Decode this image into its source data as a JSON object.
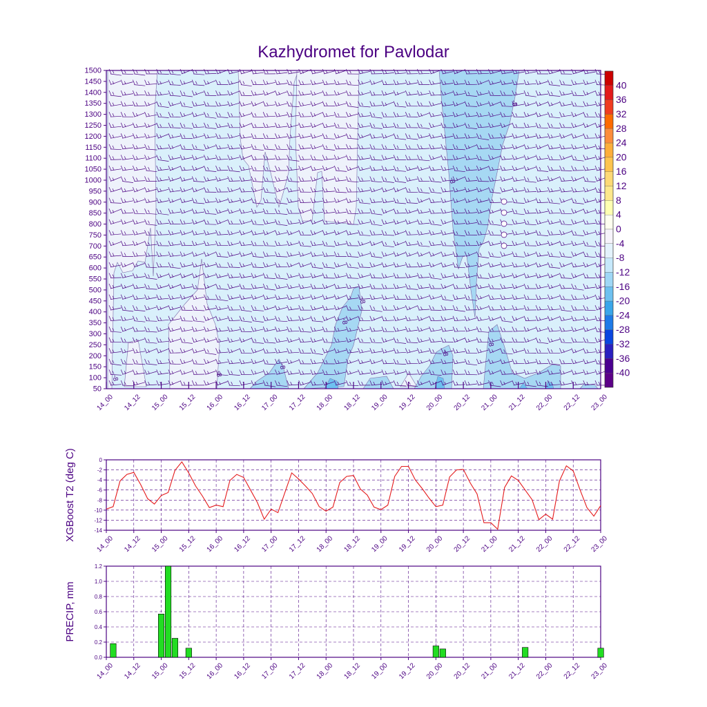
{
  "title": "Kazhydromet for Pavlodar",
  "colors": {
    "frame": "#4b0082",
    "t2_line": "#e41a1c",
    "precip_bar": "#22dd22",
    "barb": "#4b0082"
  },
  "chart_data": [
    {
      "type": "heatmap",
      "name": "cross-section",
      "x_ticks": [
        "14_00",
        "14_12",
        "15_00",
        "15_12",
        "16_00",
        "16_12",
        "17_00",
        "17_12",
        "18_00",
        "18_12",
        "19_00",
        "19_12",
        "20_00",
        "20_12",
        "21_00",
        "21_12",
        "22_00",
        "22_12",
        "23_00"
      ],
      "y_ticks": [
        "1500",
        "1450",
        "1400",
        "1350",
        "1300",
        "1250",
        "1200",
        "1150",
        "1100",
        "1050",
        "1000",
        "950",
        "900",
        "850",
        "800",
        "750",
        "700",
        "650",
        "600",
        "550",
        "500",
        "450",
        "400",
        "350",
        "300",
        "250",
        "200",
        "150",
        "100",
        "50"
      ],
      "ylim": [
        50,
        1500
      ],
      "contour_label": "-8",
      "colorbar": {
        "labels": [
          "40",
          "36",
          "32",
          "28",
          "24",
          "20",
          "16",
          "12",
          "8",
          "4",
          "0",
          "-4",
          "-8",
          "-12",
          "-16",
          "-20",
          "-24",
          "-28",
          "-32",
          "-36",
          "-40"
        ],
        "colors": [
          "#cc0000",
          "#e31a1c",
          "#f03b20",
          "#fd6a02",
          "#fd8d3c",
          "#fdae3c",
          "#fec44f",
          "#fed976",
          "#fee88b",
          "#ffffb2",
          "#fffff0",
          "#f7f4fb",
          "#e4f3fc",
          "#c6e9fb",
          "#9fd7f6",
          "#6ec1f0",
          "#3aa6ea",
          "#1e7be8",
          "#0a46e0",
          "#2a20c0",
          "#4b0090",
          "#5c0088"
        ]
      },
      "barb_rows": 30,
      "barb_cols": 42
    },
    {
      "type": "line",
      "name": "temperature",
      "ylabel": "XGBoost T2 (deg C)",
      "ylim": [
        -14,
        0
      ],
      "y_ticks": [
        "0",
        "-2",
        "-4",
        "-6",
        "-8",
        "-10",
        "-12",
        "-14"
      ],
      "x_ticks": [
        "14_00",
        "14_12",
        "15_00",
        "15_12",
        "16_00",
        "16_12",
        "17_00",
        "17_12",
        "18_00",
        "18_12",
        "19_00",
        "19_12",
        "20_00",
        "20_12",
        "21_00",
        "21_12",
        "22_00",
        "22_12",
        "23_00"
      ],
      "x_step_hours": 3,
      "values": [
        -9.8,
        -9.3,
        -4.2,
        -2.9,
        -2.5,
        -4.9,
        -7.7,
        -8.8,
        -7.1,
        -6.5,
        -2.1,
        -0.4,
        -2.6,
        -5.2,
        -7.2,
        -9.5,
        -9.0,
        -9.3,
        -4.1,
        -2.9,
        -3.5,
        -6.0,
        -8.5,
        -11.8,
        -9.8,
        -10.5,
        -6.5,
        -2.6,
        -3.8,
        -5.2,
        -6.7,
        -9.3,
        -10.2,
        -9.4,
        -4.5,
        -3.3,
        -3.1,
        -5.8,
        -7.0,
        -9.4,
        -9.9,
        -9.0,
        -3.3,
        -1.3,
        -1.3,
        -4.0,
        -5.7,
        -7.6,
        -9.3,
        -9.0,
        -3.4,
        -2.0,
        -1.9,
        -4.6,
        -6.8,
        -12.5,
        -12.5,
        -13.8,
        -5.5,
        -3.2,
        -4.1,
        -6.0,
        -7.9,
        -11.9,
        -10.8,
        -11.8,
        -4.2,
        -1.2,
        -2.2,
        -6.0,
        -9.5,
        -11.2,
        -9.1
      ]
    },
    {
      "type": "bar",
      "name": "precipitation",
      "ylabel": "PRECIP, mm",
      "ylim": [
        0,
        1.2
      ],
      "y_ticks": [
        "1.2",
        "1.0",
        "0.8",
        "0.6",
        "0.4",
        "0.2",
        "0.0"
      ],
      "x_ticks": [
        "14_00",
        "14_12",
        "15_00",
        "15_12",
        "16_00",
        "16_12",
        "17_00",
        "17_12",
        "18_00",
        "18_12",
        "19_00",
        "19_12",
        "20_00",
        "20_12",
        "21_00",
        "21_12",
        "22_00",
        "22_12",
        "23_00"
      ],
      "x_step_hours": 3,
      "values": [
        0,
        0.18,
        0,
        0,
        0,
        0,
        0,
        0,
        0.57,
        1.2,
        0.25,
        0,
        0.12,
        0,
        0,
        0,
        0,
        0,
        0,
        0,
        0,
        0,
        0,
        0,
        0,
        0,
        0,
        0,
        0,
        0,
        0,
        0,
        0,
        0,
        0,
        0,
        0,
        0,
        0,
        0,
        0,
        0,
        0,
        0,
        0,
        0,
        0,
        0,
        0.15,
        0.11,
        0,
        0,
        0,
        0,
        0,
        0,
        0,
        0,
        0,
        0,
        0,
        0.13,
        0,
        0,
        0,
        0,
        0,
        0,
        0,
        0,
        0,
        0,
        0.12
      ]
    }
  ]
}
